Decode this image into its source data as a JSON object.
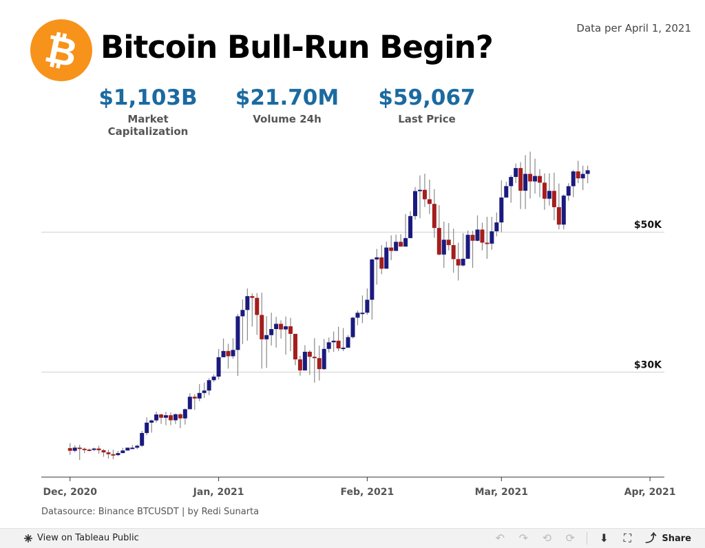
{
  "header": {
    "title": "Bitcoin Bull-Run Begin?",
    "as_of": "Data per April 1, 2021",
    "logo_icon": "bitcoin-logo-icon",
    "logo_color": "#f7931a"
  },
  "kpis": [
    {
      "value": "$1,103B",
      "label": "Market Capitalization"
    },
    {
      "value": "$21.70M",
      "label": "Volume 24h"
    },
    {
      "value": "$59,067",
      "label": "Last Price"
    }
  ],
  "chart_data": {
    "type": "candlestick",
    "title": "",
    "xlabel": "",
    "ylabel": "",
    "ylim": [
      15000,
      63500
    ],
    "grid": "horizontal reference lines at 30K and 50K",
    "reference_lines": [
      {
        "value": 30000,
        "label": "$30K"
      },
      {
        "value": 50000,
        "label": "$50K"
      }
    ],
    "x_ticks": [
      "Dec, 2020",
      "Jan, 2021",
      "Feb, 2021",
      "Mar, 2021",
      "Apr, 2021"
    ],
    "x_tick_dates": [
      "2020-12-01",
      "2021-01-01",
      "2021-02-01",
      "2021-03-01",
      "2021-04-01"
    ],
    "colors": {
      "up": "#1a1a7e",
      "down": "#a51d1d",
      "wick": "#888888"
    },
    "series": [
      {
        "name": "BTCUSDT",
        "date_start": "2020-12-01",
        "close": [
          18760,
          19210,
          19050,
          18930,
          18880,
          19080,
          18840,
          18530,
          18270,
          18140,
          18430,
          18800,
          19200,
          19200,
          19480,
          21300,
          22780,
          23100,
          23950,
          23480,
          23840,
          23120,
          23980,
          23390,
          24700,
          26480,
          26230,
          27020,
          27370,
          28850,
          29360,
          32130,
          33020,
          32270,
          33170,
          37980,
          38880,
          40860,
          40610,
          38170,
          34690,
          35290,
          36150,
          36900,
          36100,
          36550,
          35470,
          31820,
          30240,
          32910,
          32190,
          32000,
          30430,
          33320,
          34260,
          34490,
          33390,
          33490,
          35000,
          37780,
          38480,
          38490,
          40340,
          46100,
          46400,
          44780,
          47800,
          47320,
          48620,
          47940,
          49150,
          52300,
          55870,
          56050,
          54700,
          54040,
          50600,
          46800,
          48920,
          48150,
          46150,
          45240,
          46200,
          49620,
          48770,
          50370,
          48500,
          48360,
          50120,
          51390,
          54950,
          56580,
          57890,
          59160,
          55920,
          58330,
          57250,
          58030,
          57070,
          54780,
          55900,
          53570,
          51080,
          55220,
          56570,
          58680,
          57690,
          58330,
          58840
        ],
        "high": [
          19850,
          19550,
          19620,
          19220,
          19070,
          19200,
          19480,
          19020,
          18900,
          18900,
          18740,
          19180,
          19200,
          19590,
          19640,
          21590,
          23540,
          23200,
          24350,
          24050,
          24320,
          24220,
          24090,
          24100,
          24800,
          27000,
          26850,
          28300,
          28500,
          29150,
          29670,
          33300,
          34800,
          34050,
          34840,
          38300,
          40370,
          41950,
          41250,
          41300,
          41350,
          38000,
          38500,
          37900,
          37400,
          37950,
          37760,
          33960,
          32340,
          33850,
          33140,
          34850,
          33790,
          34730,
          34950,
          35810,
          36500,
          36300,
          35300,
          37900,
          38820,
          40950,
          41950,
          46200,
          47600,
          48150,
          48650,
          49550,
          49650,
          49700,
          52600,
          53000,
          56450,
          58110,
          58350,
          57500,
          56150,
          53880,
          51500,
          51300,
          50500,
          48500,
          49850,
          50240,
          50200,
          52400,
          51350,
          52200,
          52190,
          52800,
          57400,
          57200,
          58150,
          59800,
          60000,
          61000,
          61500,
          60500,
          59000,
          58400,
          58400,
          58500,
          56950,
          55400,
          57000,
          58900,
          60200,
          59500,
          59500
        ],
        "low": [
          18180,
          18530,
          17450,
          18430,
          18700,
          18720,
          18360,
          17900,
          17650,
          17560,
          18010,
          18500,
          18770,
          18970,
          19000,
          19300,
          21000,
          21350,
          22800,
          22600,
          22400,
          22430,
          22600,
          22000,
          22500,
          24700,
          24600,
          25850,
          26300,
          26720,
          28600,
          28950,
          32300,
          30500,
          31920,
          29450,
          34000,
          34500,
          36500,
          35320,
          30500,
          30600,
          33800,
          33500,
          34800,
          32500,
          33000,
          31000,
          29500,
          30500,
          29600,
          28500,
          28800,
          30300,
          32800,
          32900,
          33000,
          33000,
          33500,
          34800,
          36700,
          37000,
          38200,
          37500,
          42500,
          44000,
          46500,
          46000,
          48100,
          48050,
          48800,
          50900,
          51800,
          52000,
          53600,
          52600,
          49200,
          46700,
          44900,
          47400,
          44200,
          43100,
          45100,
          46400,
          44900,
          48700,
          47400,
          46200,
          47500,
          49400,
          50000,
          56200,
          54200,
          57000,
          53300,
          53300,
          54800,
          55500,
          55000,
          53200,
          53800,
          51700,
          50400,
          50400,
          54500,
          55000,
          57000,
          56000,
          57000
        ]
      }
    ]
  },
  "footer": {
    "source": "Datasource:  Binance BTCUSDT | by Redi Sunarta"
  },
  "toolbar": {
    "view_label": "View on Tableau Public",
    "share_label": "Share",
    "icons": [
      "undo-icon",
      "redo-icon",
      "revert-icon",
      "refresh-icon",
      "download-icon",
      "fullscreen-icon",
      "share-icon"
    ]
  }
}
